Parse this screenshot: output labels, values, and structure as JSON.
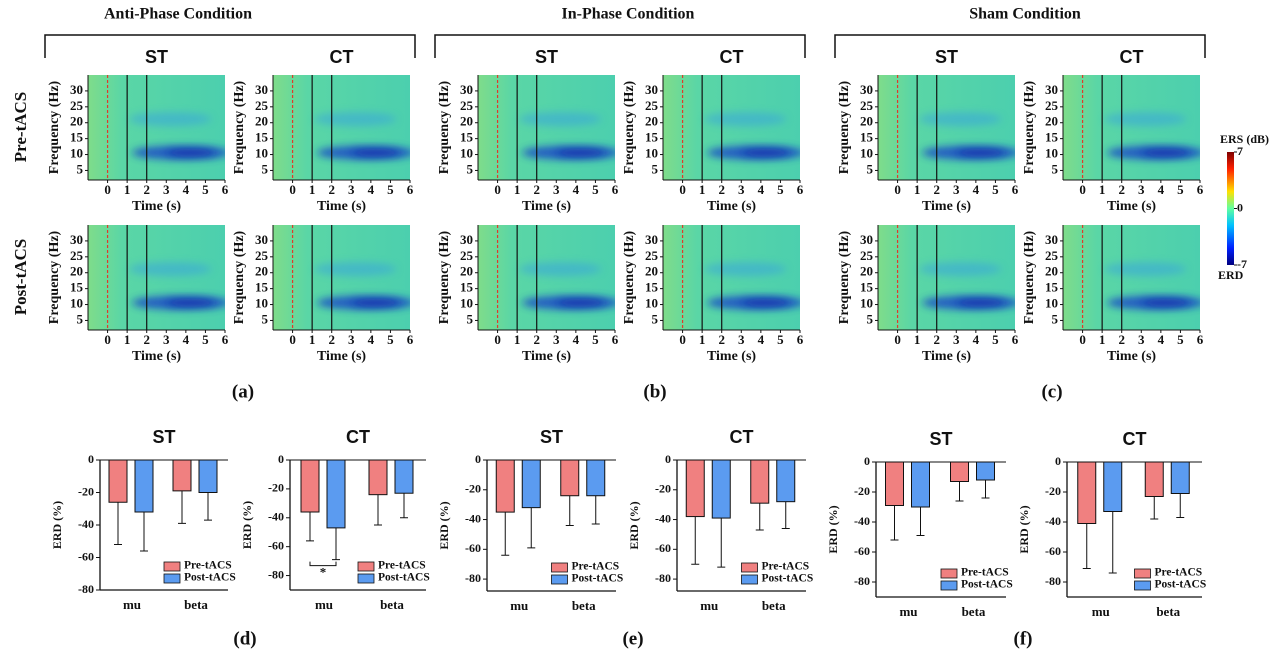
{
  "chart_data": [
    {
      "type": "spectrogram",
      "conditions": [
        {
          "title": "Anti-Phase Condition",
          "panel": "(a)",
          "columns": [
            "ST",
            "CT"
          ]
        },
        {
          "title": "In-Phase Condition",
          "panel": "(b)",
          "columns": [
            "ST",
            "CT"
          ]
        },
        {
          "title": "Sham Condition",
          "panel": "(c)",
          "columns": [
            "ST",
            "CT"
          ]
        }
      ],
      "rows": [
        "Pre-tACS",
        "Post-tACS"
      ],
      "xlabel": "Time (s)",
      "ylabel": "Frequency (Hz)",
      "xlim": [
        -1,
        6
      ],
      "xticks": [
        0,
        1,
        2,
        3,
        4,
        5,
        6
      ],
      "ylim": [
        2,
        35
      ],
      "yticks": [
        5,
        10,
        15,
        20,
        25,
        30
      ],
      "event_lines": [
        {
          "x": 0,
          "color": "#e03a2a",
          "dashed": true
        },
        {
          "x": 1,
          "color": "#111111",
          "dashed": false
        },
        {
          "x": 2,
          "color": "#111111",
          "dashed": false
        }
      ],
      "colorbar": {
        "title": "ERS (dB)",
        "bottom_label": "ERD",
        "lim": [
          -7,
          7
        ],
        "ticks": [
          7,
          0,
          -7
        ]
      }
    },
    {
      "type": "bar",
      "panel": "(d)",
      "title": "ST",
      "ylabel": "ERD (%)",
      "categories": [
        "mu",
        "beta"
      ],
      "series": [
        {
          "name": "Pre-tACS",
          "color": "#f08080",
          "values": [
            -26,
            -19
          ],
          "errors": [
            26,
            20
          ]
        },
        {
          "name": "Post-tACS",
          "color": "#5b9bf0",
          "values": [
            -32,
            -20
          ],
          "errors": [
            24,
            17
          ]
        }
      ],
      "ylim": [
        -80,
        0
      ],
      "yticks": [
        0,
        -20,
        -40,
        -60,
        -80
      ],
      "legend": "lower right"
    },
    {
      "type": "bar",
      "title": "CT",
      "ylabel": "ERD (%)",
      "categories": [
        "mu",
        "beta"
      ],
      "series": [
        {
          "name": "Pre-tACS",
          "color": "#f08080",
          "values": [
            -36,
            -24
          ],
          "errors": [
            20,
            21
          ]
        },
        {
          "name": "Post-tACS",
          "color": "#5b9bf0",
          "values": [
            -47,
            -23
          ],
          "errors": [
            22,
            17
          ]
        }
      ],
      "ylim": [
        -90,
        0
      ],
      "yticks": [
        0,
        -20,
        -40,
        -60,
        -80
      ],
      "legend": "lower right",
      "significance": {
        "label": "*",
        "category": "mu"
      }
    },
    {
      "type": "bar",
      "panel": "(e)",
      "title": "ST",
      "ylabel": "ERD (%)",
      "categories": [
        "mu",
        "beta"
      ],
      "series": [
        {
          "name": "Pre-tACS",
          "color": "#f08080",
          "values": [
            -35,
            -24
          ],
          "errors": [
            29,
            20
          ]
        },
        {
          "name": "Post-tACS",
          "color": "#5b9bf0",
          "values": [
            -32,
            -24
          ],
          "errors": [
            27,
            19
          ]
        }
      ],
      "ylim": [
        -88,
        0
      ],
      "yticks": [
        0,
        -20,
        -40,
        -60,
        -80
      ],
      "legend": "lower right"
    },
    {
      "type": "bar",
      "title": "CT",
      "ylabel": "ERD (%)",
      "categories": [
        "mu",
        "beta"
      ],
      "series": [
        {
          "name": "Pre-tACS",
          "color": "#f08080",
          "values": [
            -38,
            -29
          ],
          "errors": [
            32,
            18
          ]
        },
        {
          "name": "Post-tACS",
          "color": "#5b9bf0",
          "values": [
            -39,
            -28
          ],
          "errors": [
            33,
            18
          ]
        }
      ],
      "ylim": [
        -88,
        0
      ],
      "yticks": [
        0,
        -20,
        -40,
        -60,
        -80
      ],
      "legend": "lower right"
    },
    {
      "type": "bar",
      "panel": "(f)",
      "title": "ST",
      "ylabel": "ERD (%)",
      "categories": [
        "mu",
        "beta"
      ],
      "series": [
        {
          "name": "Pre-tACS",
          "color": "#f08080",
          "values": [
            -29,
            -13
          ],
          "errors": [
            23,
            13
          ]
        },
        {
          "name": "Post-tACS",
          "color": "#5b9bf0",
          "values": [
            -30,
            -12
          ],
          "errors": [
            19,
            12
          ]
        }
      ],
      "ylim": [
        -90,
        0
      ],
      "yticks": [
        0,
        -20,
        -40,
        -60,
        -80
      ],
      "legend": "lower right"
    },
    {
      "type": "bar",
      "title": "CT",
      "ylabel": "ERD (%)",
      "categories": [
        "mu",
        "beta"
      ],
      "series": [
        {
          "name": "Pre-tACS",
          "color": "#f08080",
          "values": [
            -41,
            -23
          ],
          "errors": [
            30,
            15
          ]
        },
        {
          "name": "Post-tACS",
          "color": "#5b9bf0",
          "values": [
            -33,
            -21
          ],
          "errors": [
            41,
            16
          ]
        }
      ],
      "ylim": [
        -90,
        0
      ],
      "yticks": [
        0,
        -20,
        -40,
        -60,
        -80
      ],
      "legend": "lower right"
    }
  ]
}
